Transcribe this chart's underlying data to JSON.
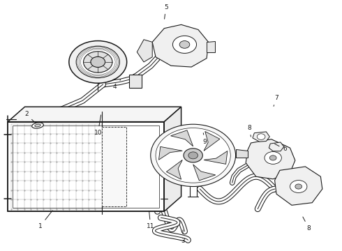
{
  "background_color": "#ffffff",
  "line_color": "#1a1a1a",
  "fig_width": 4.9,
  "fig_height": 3.6,
  "dpi": 100,
  "label_positions": {
    "1": [
      0.115,
      0.095,
      0.155,
      0.165
    ],
    "2": [
      0.075,
      0.545,
      0.105,
      0.505
    ],
    "3": [
      0.535,
      0.038,
      0.535,
      0.088
    ],
    "4": [
      0.335,
      0.655,
      0.355,
      0.69
    ],
    "5": [
      0.485,
      0.975,
      0.48,
      0.92
    ],
    "6": [
      0.835,
      0.405,
      0.8,
      0.43
    ],
    "7": [
      0.81,
      0.61,
      0.8,
      0.57
    ],
    "8a": [
      0.73,
      0.49,
      0.735,
      0.455
    ],
    "8b": [
      0.905,
      0.088,
      0.885,
      0.14
    ],
    "9": [
      0.6,
      0.435,
      0.595,
      0.47
    ],
    "10": [
      0.285,
      0.47,
      0.295,
      0.55
    ],
    "11": [
      0.44,
      0.095,
      0.435,
      0.165
    ]
  }
}
